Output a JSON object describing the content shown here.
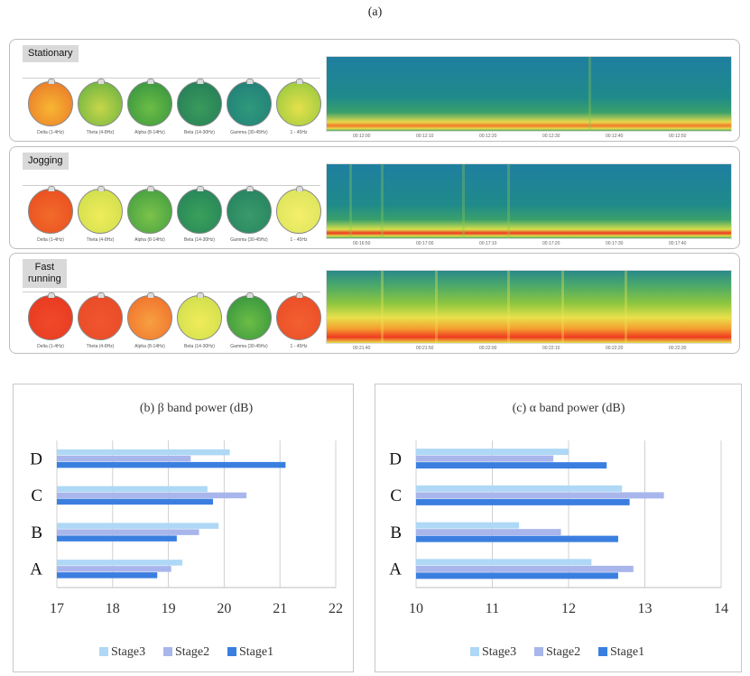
{
  "figure_label": "(a)",
  "eeg_panels": [
    {
      "title": "Stationary",
      "topo_labels": [
        "Delta (1-4Hz)",
        "Theta (4-8Hz)",
        "Alpha (8-14Hz)",
        "Beta (14-30Hz)",
        "Gamma (30-45Hz)",
        "1 - 45Hz"
      ],
      "topo_colors": [
        [
          "#f7b731",
          "#e8702a"
        ],
        [
          "#c7d64a",
          "#5fae3f"
        ],
        [
          "#6cbd45",
          "#2f8f3f"
        ],
        [
          "#3a9a5a",
          "#217a5a"
        ],
        [
          "#2f9a7a",
          "#1f7a7a"
        ],
        [
          "#e5e04a",
          "#8cc63f"
        ]
      ],
      "spec_times": [
        "00:12:00",
        "00:12:10",
        "00:12:20",
        "00:12:30",
        "00:12:40",
        "00:12:50"
      ]
    },
    {
      "title": "Jogging",
      "topo_labels": [
        "Delta (1-4Hz)",
        "Theta (4-8Hz)",
        "Alpha (8-14Hz)",
        "Beta (14-30Hz)",
        "Gamma (30-45Hz)",
        "1 - 45Hz"
      ],
      "topo_colors": [
        [
          "#f26b2a",
          "#e84a1f"
        ],
        [
          "#f0ec5a",
          "#c9dc4a"
        ],
        [
          "#7cc24a",
          "#3a9a3f"
        ],
        [
          "#3aa05a",
          "#23805a"
        ],
        [
          "#3a9a6a",
          "#23805f"
        ],
        [
          "#f5ef6a",
          "#d6e25a"
        ]
      ],
      "spec_times": [
        "00:16:50",
        "00:17:00",
        "00:17:10",
        "00:17:20",
        "00:17:30",
        "00:17:40"
      ]
    },
    {
      "title": "Fast\nrunning",
      "topo_labels": [
        "Delta (1-4Hz)",
        "Theta (4-8Hz)",
        "Alpha (8-14Hz)",
        "Beta (14-30Hz)",
        "Gamma (30-45Hz)",
        "1 - 45Hz"
      ],
      "topo_colors": [
        [
          "#ef4a2a",
          "#e8361f"
        ],
        [
          "#ef5530",
          "#e84a25"
        ],
        [
          "#f7a040",
          "#ef6a2a"
        ],
        [
          "#f0ec5a",
          "#c9dc4a"
        ],
        [
          "#6cbd45",
          "#2f8f3f"
        ],
        [
          "#f26030",
          "#ea4a25"
        ]
      ],
      "spec_times": [
        "00:21:40",
        "00:21:50",
        "00:22:00",
        "00:22:10",
        "00:22:20",
        "00:22:30"
      ]
    }
  ],
  "chart_data": [
    {
      "type": "bar",
      "orientation": "horizontal",
      "title": "(b)   β band power  (dB)",
      "categories": [
        "A",
        "B",
        "C",
        "D"
      ],
      "series": [
        {
          "name": "Stage3",
          "color": "#aed8f5",
          "values": [
            19.25,
            19.9,
            19.7,
            20.1
          ]
        },
        {
          "name": "Stage2",
          "color": "#a9b6ec",
          "values": [
            19.05,
            19.55,
            20.4,
            19.4
          ]
        },
        {
          "name": "Stage1",
          "color": "#3a7fe0",
          "values": [
            18.8,
            19.15,
            19.8,
            21.1
          ]
        }
      ],
      "xlim": [
        17,
        22
      ],
      "xticks": [
        "17",
        "18",
        "19",
        "20",
        "21",
        "22"
      ],
      "legend": [
        "Stage3",
        "Stage2",
        "Stage1"
      ]
    },
    {
      "type": "bar",
      "orientation": "horizontal",
      "title": "(c)  α band power   (dB)",
      "categories": [
        "A",
        "B",
        "C",
        "D"
      ],
      "series": [
        {
          "name": "Stage3",
          "color": "#aed8f5",
          "values": [
            12.3,
            11.35,
            12.7,
            12.0
          ]
        },
        {
          "name": "Stage2",
          "color": "#a9b6ec",
          "values": [
            12.85,
            11.9,
            13.25,
            11.8
          ]
        },
        {
          "name": "Stage1",
          "color": "#3a7fe0",
          "values": [
            12.65,
            12.65,
            12.8,
            12.5
          ]
        }
      ],
      "xlim": [
        10,
        14
      ],
      "xticks": [
        "10",
        "11",
        "12",
        "13",
        "14"
      ],
      "legend": [
        "Stage3",
        "Stage2",
        "Stage1"
      ]
    }
  ]
}
